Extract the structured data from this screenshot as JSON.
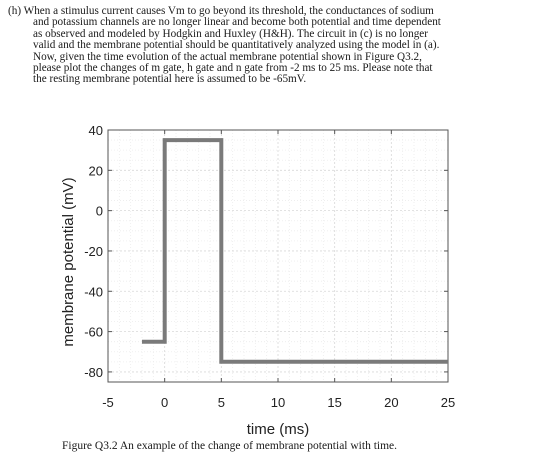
{
  "question": {
    "lines": [
      "(h) When a stimulus current causes Vm to go beyond its threshold, the conductances of sodium",
      "and potassium channels are no longer linear and become both potential and time dependent",
      "as observed and modeled by Hodgkin and Huxley (H&H). The circuit in (c) is no longer",
      "valid and the membrane potential should be quantitatively analyzed using the model in (a).",
      "Now, given the time evolution of the actual membrane potential shown in Figure Q3.2,",
      "please plot the changes of m gate, h gate and n gate from -2 ms to 25 ms. Please note that",
      "the resting membrane potential here is assumed to be -65mV."
    ]
  },
  "chart_data": {
    "type": "line",
    "title": "",
    "xlabel": "time (ms)",
    "ylabel": "membrane potential (mV)",
    "xlim": [
      -5,
      25
    ],
    "ylim": [
      -85,
      40
    ],
    "xticks": [
      -5,
      0,
      5,
      10,
      15,
      20,
      25
    ],
    "yticks": [
      40,
      20,
      0,
      -20,
      -40,
      -60,
      -80
    ],
    "grid": true,
    "series": [
      {
        "color": "#7a7a7a",
        "x": [
          -2,
          0,
          0,
          5,
          5,
          25
        ],
        "y": [
          -65,
          -65,
          35,
          35,
          -75,
          -75
        ]
      }
    ]
  },
  "caption": "Figure Q3.2 An example of the change of membrane potential with time."
}
